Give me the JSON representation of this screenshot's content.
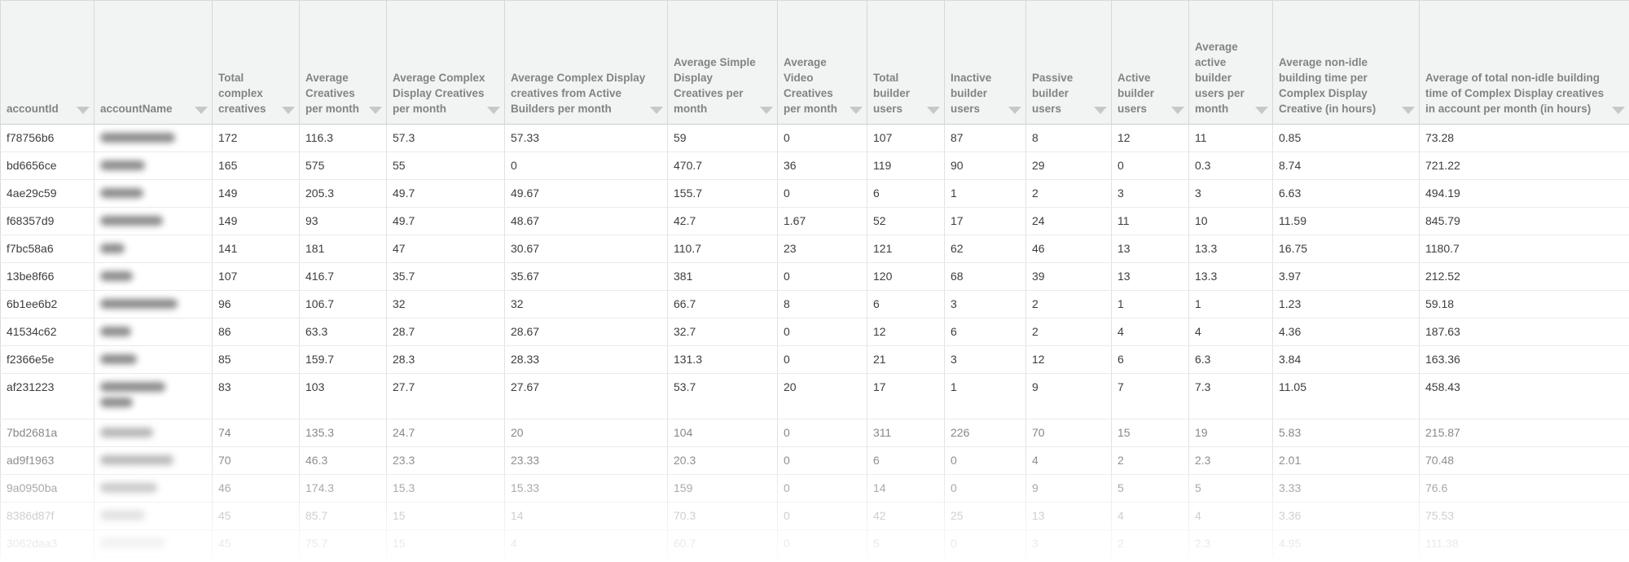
{
  "table": {
    "accountName_values_redacted": true,
    "filter_icon_name": "filter-dropdown-arrow",
    "columns": [
      {
        "id": "accountId",
        "label": "accountId"
      },
      {
        "id": "accountName",
        "label": "accountName"
      },
      {
        "id": "totalComplexCreatives",
        "label": "Total complex creatives"
      },
      {
        "id": "avgCreativesPerMonth",
        "label": "Average Creatives per month"
      },
      {
        "id": "avgComplexDisplayCreativesPerMonth",
        "label": "Average Complex Display Creatives per month"
      },
      {
        "id": "avgComplexDisplayFromActiveBuildersPerMonth",
        "label": "Average Complex Display creatives from Active Builders per month"
      },
      {
        "id": "avgSimpleDisplayCreativesPerMonth",
        "label": "Average Simple Display Creatives per month"
      },
      {
        "id": "avgVideoCreativesPerMonth",
        "label": "Average Video Creatives per month"
      },
      {
        "id": "totalBuilderUsers",
        "label": "Total builder users"
      },
      {
        "id": "inactiveBuilderUsers",
        "label": "Inactive builder users"
      },
      {
        "id": "passiveBuilderUsers",
        "label": "Passive builder users"
      },
      {
        "id": "activeBuilderUsers",
        "label": "Active builder users"
      },
      {
        "id": "avgActiveBuilderUsersPerMonth",
        "label": "Average active builder users per month"
      },
      {
        "id": "avgNonIdleBuildingTimePerCreative",
        "label": "Average non-idle building time per Complex Display Creative (in hours)"
      },
      {
        "id": "avgTotalNonIdleBuildingTimePerMonth",
        "label": "Average of total non-idle building time of Complex Display creatives in account per month (in hours)"
      }
    ],
    "rows": [
      {
        "accountId": "f78756b6",
        "values": [
          "172",
          "116.3",
          "57.3",
          "57.33",
          "59",
          "0",
          "107",
          "87",
          "8",
          "12",
          "11",
          "0.85",
          "73.28"
        ]
      },
      {
        "accountId": "bd6656ce",
        "values": [
          "165",
          "575",
          "55",
          "0",
          "470.7",
          "36",
          "119",
          "90",
          "29",
          "0",
          "0.3",
          "8.74",
          "721.22"
        ]
      },
      {
        "accountId": "4ae29c59",
        "values": [
          "149",
          "205.3",
          "49.7",
          "49.67",
          "155.7",
          "0",
          "6",
          "1",
          "2",
          "3",
          "3",
          "6.63",
          "494.19"
        ]
      },
      {
        "accountId": "f68357d9",
        "values": [
          "149",
          "93",
          "49.7",
          "48.67",
          "42.7",
          "1.67",
          "52",
          "17",
          "24",
          "11",
          "10",
          "11.59",
          "845.79"
        ]
      },
      {
        "accountId": "f7bc58a6",
        "values": [
          "141",
          "181",
          "47",
          "30.67",
          "110.7",
          "23",
          "121",
          "62",
          "46",
          "13",
          "13.3",
          "16.75",
          "1180.7"
        ]
      },
      {
        "accountId": "13be8f66",
        "values": [
          "107",
          "416.7",
          "35.7",
          "35.67",
          "381",
          "0",
          "120",
          "68",
          "39",
          "13",
          "13.3",
          "3.97",
          "212.52"
        ]
      },
      {
        "accountId": "6b1ee6b2",
        "values": [
          "96",
          "106.7",
          "32",
          "32",
          "66.7",
          "8",
          "6",
          "3",
          "2",
          "1",
          "1",
          "1.23",
          "59.18"
        ]
      },
      {
        "accountId": "41534c62",
        "values": [
          "86",
          "63.3",
          "28.7",
          "28.67",
          "32.7",
          "0",
          "12",
          "6",
          "2",
          "4",
          "4",
          "4.36",
          "187.63"
        ]
      },
      {
        "accountId": "f2366e5e",
        "values": [
          "85",
          "159.7",
          "28.3",
          "28.33",
          "131.3",
          "0",
          "21",
          "3",
          "12",
          "6",
          "6.3",
          "3.84",
          "163.36"
        ]
      },
      {
        "accountId": "af231223",
        "values": [
          "83",
          "103",
          "27.7",
          "27.67",
          "53.7",
          "20",
          "17",
          "1",
          "9",
          "7",
          "7.3",
          "11.05",
          "458.43"
        ]
      },
      {
        "accountId": "7bd2681a",
        "values": [
          "74",
          "135.3",
          "24.7",
          "20",
          "104",
          "0",
          "311",
          "226",
          "70",
          "15",
          "19",
          "5.83",
          "215.87"
        ]
      },
      {
        "accountId": "ad9f1963",
        "values": [
          "70",
          "46.3",
          "23.3",
          "23.33",
          "20.3",
          "0",
          "6",
          "0",
          "4",
          "2",
          "2.3",
          "2.01",
          "70.48"
        ]
      },
      {
        "accountId": "9a0950ba",
        "values": [
          "46",
          "174.3",
          "15.3",
          "15.33",
          "159",
          "0",
          "14",
          "0",
          "9",
          "5",
          "5",
          "3.33",
          "76.6"
        ]
      },
      {
        "accountId": "8386d87f",
        "values": [
          "45",
          "85.7",
          "15",
          "14",
          "70.3",
          "0",
          "42",
          "25",
          "13",
          "4",
          "4",
          "3.36",
          "75.53"
        ]
      },
      {
        "accountId": "3062daa3",
        "values": [
          "45",
          "75.7",
          "15",
          "4",
          "60.7",
          "0",
          "5",
          "0",
          "3",
          "2",
          "2.3",
          "4.95",
          "111.38"
        ]
      }
    ],
    "colors": {
      "header_bg": "#f2f3f3",
      "header_text": "#838383",
      "cell_text": "#3d3d3d",
      "grid_line_vertical": "#e2e2e2",
      "grid_line_horizontal": "#eaeaea",
      "header_bottom_border": "#cdcfcf",
      "filter_arrow": "#c5c8c8"
    }
  }
}
